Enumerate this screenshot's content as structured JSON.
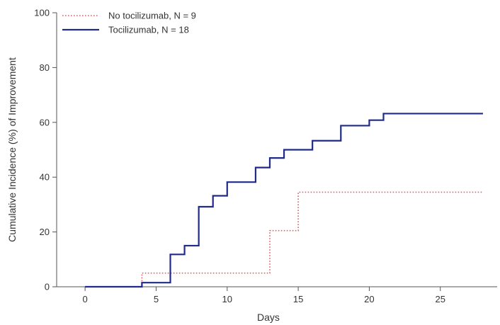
{
  "chart_data": {
    "type": "line",
    "step": true,
    "xlabel": "Days",
    "ylabel": "Cumulative Incidence (%) of Improvement",
    "xlim": [
      -2,
      29
    ],
    "ylim": [
      0,
      100
    ],
    "xticks": [
      0,
      5,
      10,
      15,
      20,
      25
    ],
    "yticks": [
      0,
      20,
      40,
      60,
      80,
      100
    ],
    "grid": false,
    "legend_position": "top-left",
    "series": [
      {
        "name": "No tocilizumab, N = 9",
        "color": "#e06060",
        "line_style": "dotted",
        "x": [
          4,
          13,
          15,
          28
        ],
        "y": [
          5,
          20.5,
          34.5,
          34.5
        ]
      },
      {
        "name": "Tocilizumab, N = 18",
        "color": "#1f2a8a",
        "line_style": "solid",
        "x": [
          4,
          6,
          7,
          8,
          9,
          10,
          12,
          13,
          14,
          16,
          18,
          20,
          21,
          28
        ],
        "y": [
          1.5,
          11.8,
          15,
          29.2,
          33.2,
          38.2,
          43.5,
          47,
          50,
          53.3,
          58.8,
          60.8,
          63.2,
          63.2
        ]
      }
    ]
  }
}
